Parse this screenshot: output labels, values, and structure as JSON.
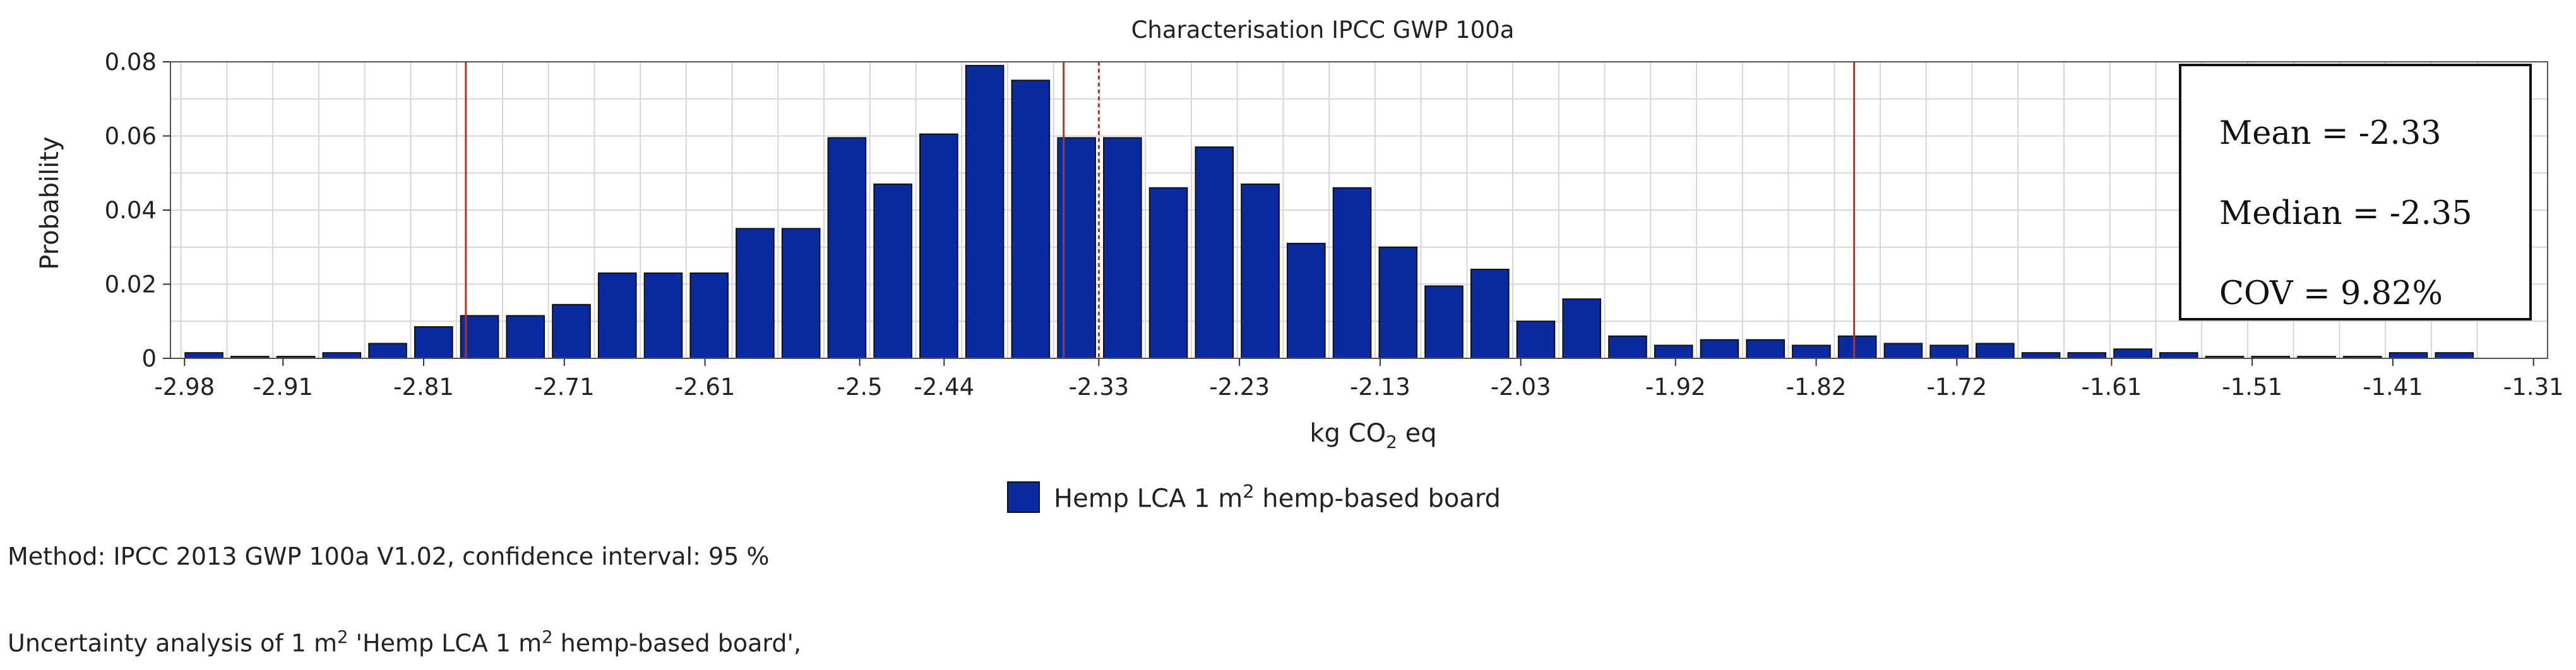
{
  "chart_data": {
    "type": "bar",
    "title": "Characterisation IPCC GWP 100a",
    "xlabel_pre": "kg CO",
    "xlabel_sub": "2",
    "xlabel_post": " eq",
    "ylabel": "Probability",
    "ylim": [
      0,
      0.08
    ],
    "yticks": [
      "0",
      "0.02",
      "0.04",
      "0.06",
      "0.08"
    ],
    "xlim": [
      -2.99,
      -1.3
    ],
    "xticks": [
      "-2.98",
      "-2.91",
      "-2.81",
      "-2.71",
      "-2.61",
      "-2.5",
      "-2.44",
      "-2.33",
      "-2.23",
      "-2.13",
      "-2.03",
      "-1.92",
      "-1.82",
      "-1.72",
      "-1.61",
      "-1.51",
      "-1.41",
      "-1.31"
    ],
    "xtick_values": [
      -2.98,
      -2.91,
      -2.81,
      -2.71,
      -2.61,
      -2.5,
      -2.44,
      -2.33,
      -2.23,
      -2.13,
      -2.03,
      -1.92,
      -1.82,
      -1.72,
      -1.61,
      -1.51,
      -1.41,
      -1.31
    ],
    "grid": true,
    "bin_start": -2.9825,
    "bin_width": 0.03265,
    "values": [
      0.0015,
      0.0005,
      0.0005,
      0.0015,
      0.004,
      0.0085,
      0.0115,
      0.0115,
      0.0145,
      0.023,
      0.023,
      0.023,
      0.035,
      0.035,
      0.0595,
      0.047,
      0.0605,
      0.079,
      0.075,
      0.0595,
      0.0595,
      0.046,
      0.057,
      0.047,
      0.031,
      0.046,
      0.03,
      0.0195,
      0.024,
      0.01,
      0.016,
      0.006,
      0.0035,
      0.005,
      0.005,
      0.0035,
      0.006,
      0.004,
      0.0035,
      0.004,
      0.0015,
      0.0015,
      0.0025,
      0.0015,
      0.0005,
      0.0005,
      0.0005,
      0.0005,
      0.0015,
      0.0015
    ],
    "series": [
      {
        "name_pre": "Hemp LCA 1 m",
        "name_sup": "2",
        "name_post": " hemp-based board",
        "color": "#0a2aa0"
      }
    ],
    "reference_lines": [
      {
        "value": -2.78,
        "style": "solid",
        "color": "#a33a2a"
      },
      {
        "value": -2.355,
        "style": "solid",
        "color": "#a33a2a"
      },
      {
        "value": -2.33,
        "style": "dashed",
        "color": "#a33a2a"
      },
      {
        "value": -1.793,
        "style": "solid",
        "color": "#a33a2a"
      }
    ],
    "stats_box": {
      "mean": "Mean = -2.33",
      "median": "Median = -2.35",
      "cov": "COV = 9.82%",
      "placement": "top-right"
    },
    "legend_placement": "bottom-center"
  },
  "notes": {
    "method": "Method: IPCC 2013 GWP 100a V1.02, confidence interval: 95 %",
    "uncertainty_pre": "Uncertainty analysis of 1 m",
    "uncertainty_sup": "2",
    "uncertainty_mid": " 'Hemp LCA 1 m",
    "uncertainty_sup2": "2",
    "uncertainty_post": " hemp-based board',"
  }
}
